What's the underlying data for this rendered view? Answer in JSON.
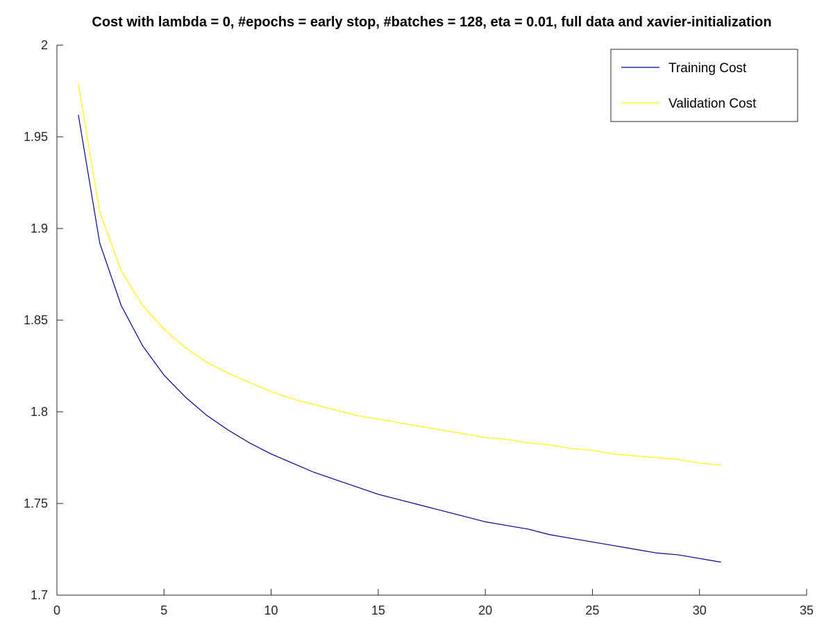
{
  "chart_data": {
    "type": "line",
    "title": "Cost with lambda = 0, #epochs = early stop, #batches = 128, eta = 0.01, full data and xavier-initialization",
    "xlabel": "",
    "ylabel": "",
    "xlim": [
      0,
      35
    ],
    "ylim": [
      1.7,
      2.0
    ],
    "x_ticks": [
      0,
      5,
      10,
      15,
      20,
      25,
      30,
      35
    ],
    "y_ticks": [
      1.7,
      1.75,
      1.8,
      1.85,
      1.9,
      1.95,
      2
    ],
    "x_tick_labels": [
      "0",
      "5",
      "10",
      "15",
      "20",
      "25",
      "30",
      "35"
    ],
    "y_tick_labels": [
      "1.7",
      "1.75",
      "1.8",
      "1.85",
      "1.9",
      "1.95",
      "2"
    ],
    "grid": false,
    "legend": {
      "position": "top-right",
      "entries": [
        "Training Cost",
        "Validation Cost"
      ]
    },
    "x": [
      1,
      2,
      3,
      4,
      5,
      6,
      7,
      8,
      9,
      10,
      11,
      12,
      13,
      14,
      15,
      16,
      17,
      18,
      19,
      20,
      21,
      22,
      23,
      24,
      25,
      26,
      27,
      28,
      29,
      30,
      31
    ],
    "series": [
      {
        "name": "Training Cost",
        "color": "#00008B",
        "values": [
          1.962,
          1.892,
          1.858,
          1.836,
          1.82,
          1.808,
          1.798,
          1.79,
          1.783,
          1.777,
          1.772,
          1.767,
          1.763,
          1.759,
          1.755,
          1.752,
          1.749,
          1.746,
          1.743,
          1.74,
          1.738,
          1.736,
          1.733,
          1.731,
          1.729,
          1.727,
          1.725,
          1.723,
          1.722,
          1.72,
          1.718
        ]
      },
      {
        "name": "Validation Cost",
        "color": "#FFFF00",
        "values": [
          1.979,
          1.909,
          1.877,
          1.858,
          1.845,
          1.835,
          1.827,
          1.821,
          1.816,
          1.811,
          1.807,
          1.804,
          1.801,
          1.798,
          1.796,
          1.794,
          1.792,
          1.79,
          1.788,
          1.786,
          1.785,
          1.783,
          1.782,
          1.78,
          1.779,
          1.777,
          1.776,
          1.775,
          1.774,
          1.772,
          1.771
        ]
      }
    ]
  }
}
